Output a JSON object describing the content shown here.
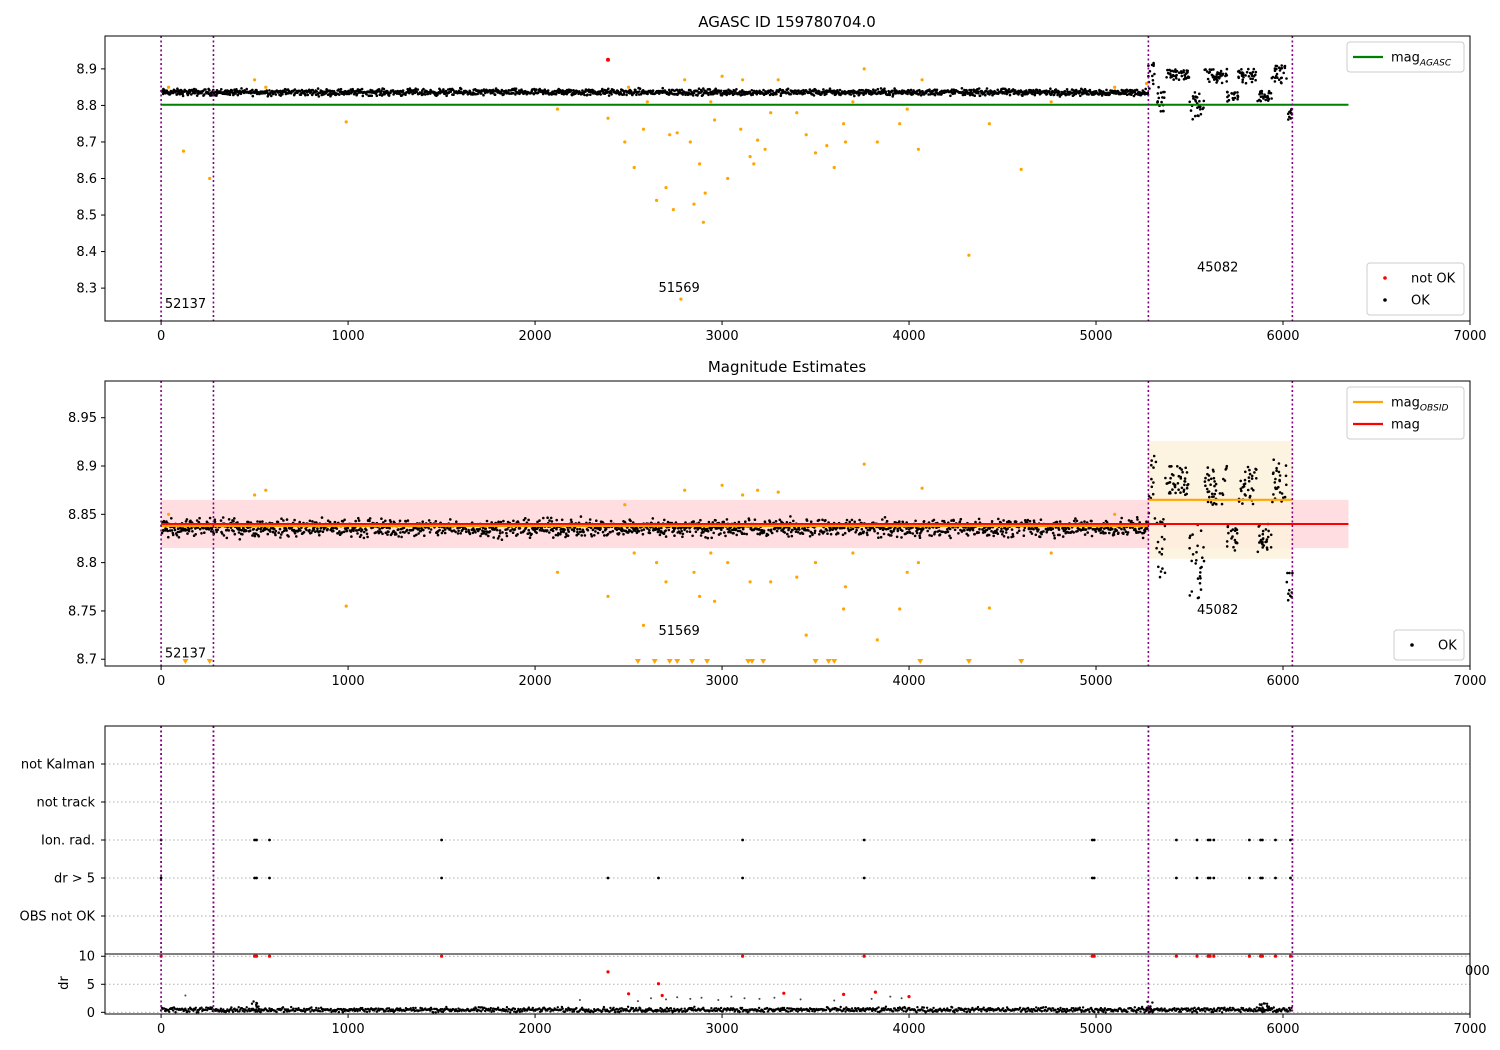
{
  "figure_title": "AGASC ID 159780704.0",
  "chart_data": [
    {
      "type": "scatter",
      "title": "AGASC ID 159780704.0",
      "xlabel": "",
      "ylabel": "",
      "xlim": [
        -300,
        7000
      ],
      "ylim": [
        8.21,
        8.99
      ],
      "x_ticks": [
        0,
        1000,
        2000,
        3000,
        4000,
        5000,
        6000,
        7000
      ],
      "y_ticks": [
        8.3,
        8.4,
        8.5,
        8.6,
        8.7,
        8.8,
        8.9
      ],
      "grid": false,
      "obsid_boundaries": [
        0,
        280,
        5280,
        6050
      ],
      "obsid_labels": [
        {
          "text": "52137",
          "x": 20,
          "y": 8.245
        },
        {
          "text": "51569",
          "x": 2660,
          "y": 8.29
        },
        {
          "text": "45082",
          "x": 5540,
          "y": 8.345
        }
      ],
      "reference_lines": [
        {
          "name": "mag_AGASC",
          "label": "mag",
          "subscript": "AGASC",
          "y": 8.802,
          "x_range": [
            0,
            6350
          ],
          "color": "#008000"
        }
      ],
      "baseline_band": {
        "x_range": [
          0,
          5280
        ],
        "center": 8.836,
        "scatter": 0.008
      },
      "segments": [
        {
          "x_range": [
            5280,
            5320
          ],
          "y_range": [
            8.84,
            8.92
          ]
        },
        {
          "x_range": [
            5320,
            5370
          ],
          "y_range": [
            8.78,
            8.85
          ]
        },
        {
          "x_range": [
            5370,
            5500
          ],
          "y_range": [
            8.87,
            8.9
          ]
        },
        {
          "x_range": [
            5500,
            5580
          ],
          "y_range": [
            8.76,
            8.84
          ]
        },
        {
          "x_range": [
            5580,
            5700
          ],
          "y_range": [
            8.86,
            8.9
          ]
        },
        {
          "x_range": [
            5700,
            5760
          ],
          "y_range": [
            8.81,
            8.84
          ]
        },
        {
          "x_range": [
            5760,
            5860
          ],
          "y_range": [
            8.86,
            8.9
          ]
        },
        {
          "x_range": [
            5860,
            5940
          ],
          "y_range": [
            8.81,
            8.84
          ]
        },
        {
          "x_range": [
            5940,
            6020
          ],
          "y_range": [
            8.86,
            8.91
          ]
        },
        {
          "x_range": [
            6020,
            6050
          ],
          "y_range": [
            8.76,
            8.79
          ]
        }
      ],
      "outliers": [
        [
          40,
          8.85
        ],
        [
          120,
          8.675
        ],
        [
          260,
          8.6
        ],
        [
          500,
          8.87
        ],
        [
          560,
          8.85
        ],
        [
          990,
          8.755
        ],
        [
          2120,
          8.79
        ],
        [
          2390,
          8.765
        ],
        [
          2480,
          8.7
        ],
        [
          2500,
          8.85
        ],
        [
          2530,
          8.63
        ],
        [
          2580,
          8.735
        ],
        [
          2600,
          8.81
        ],
        [
          2650,
          8.54
        ],
        [
          2700,
          8.575
        ],
        [
          2720,
          8.72
        ],
        [
          2740,
          8.515
        ],
        [
          2760,
          8.725
        ],
        [
          2780,
          8.27
        ],
        [
          2800,
          8.87
        ],
        [
          2830,
          8.7
        ],
        [
          2850,
          8.53
        ],
        [
          2880,
          8.64
        ],
        [
          2900,
          8.48
        ],
        [
          2910,
          8.56
        ],
        [
          2940,
          8.81
        ],
        [
          2960,
          8.76
        ],
        [
          3000,
          8.88
        ],
        [
          3030,
          8.6
        ],
        [
          3100,
          8.735
        ],
        [
          3110,
          8.87
        ],
        [
          3150,
          8.66
        ],
        [
          3170,
          8.64
        ],
        [
          3190,
          8.705
        ],
        [
          3230,
          8.68
        ],
        [
          3260,
          8.78
        ],
        [
          3300,
          8.87
        ],
        [
          3400,
          8.78
        ],
        [
          3450,
          8.72
        ],
        [
          3500,
          8.67
        ],
        [
          3560,
          8.69
        ],
        [
          3600,
          8.63
        ],
        [
          3650,
          8.75
        ],
        [
          3660,
          8.7
        ],
        [
          3700,
          8.81
        ],
        [
          3760,
          8.9
        ],
        [
          3830,
          8.7
        ],
        [
          3950,
          8.75
        ],
        [
          3990,
          8.79
        ],
        [
          4050,
          8.68
        ],
        [
          4070,
          8.87
        ],
        [
          4320,
          8.39
        ],
        [
          4430,
          8.75
        ],
        [
          4600,
          8.625
        ],
        [
          4760,
          8.81
        ],
        [
          5100,
          8.85
        ],
        [
          5270,
          8.86
        ]
      ],
      "not_ok_points": [
        [
          2390,
          8.925
        ]
      ],
      "legends": [
        {
          "position": "top-right",
          "entries": [
            {
              "label": "mag",
              "subscript": "AGASC",
              "marker": "line",
              "color": "#008000"
            }
          ]
        },
        {
          "position": "lower-right",
          "entries": [
            {
              "label": "not OK",
              "marker": "dot",
              "color": "#ff0000"
            },
            {
              "label": "OK",
              "marker": "dot",
              "color": "#000000"
            }
          ]
        }
      ],
      "colors": {
        "ok": "#000000",
        "not_ok": "#ff0000",
        "excluded": "#ffa500",
        "obsid_line": "#800080"
      }
    },
    {
      "type": "scatter",
      "title": "Magnitude Estimates",
      "xlabel": "",
      "ylabel": "",
      "xlim": [
        -300,
        7000
      ],
      "ylim": [
        8.693,
        8.988
      ],
      "x_ticks": [
        0,
        1000,
        2000,
        3000,
        4000,
        5000,
        6000,
        7000
      ],
      "y_ticks": [
        8.7,
        8.75,
        8.8,
        8.85,
        8.9,
        8.95
      ],
      "grid": false,
      "obsid_boundaries": [
        0,
        280,
        5280,
        6050
      ],
      "obsid_labels": [
        {
          "text": "52137",
          "x": 20,
          "y": 8.702
        },
        {
          "text": "51569",
          "x": 2660,
          "y": 8.725
        },
        {
          "text": "45082",
          "x": 5540,
          "y": 8.747
        }
      ],
      "mag_line": {
        "label": "mag",
        "y": 8.84,
        "x_range": [
          0,
          6350
        ],
        "band": [
          8.815,
          8.865
        ],
        "color": "#ff0000"
      },
      "obsid_mags": [
        {
          "x_range": [
            0,
            280
          ],
          "y": 8.838
        },
        {
          "x_range": [
            280,
            5280
          ],
          "y": 8.838
        },
        {
          "x_range": [
            5280,
            6050
          ],
          "y": 8.865,
          "band": [
            8.804,
            8.926
          ]
        }
      ],
      "baseline_band": {
        "x_range": [
          0,
          5280
        ],
        "center": 8.836,
        "scatter": 0.008
      },
      "segments": [
        {
          "x_range": [
            5280,
            5320
          ],
          "y_range": [
            8.84,
            8.92
          ]
        },
        {
          "x_range": [
            5320,
            5370
          ],
          "y_range": [
            8.78,
            8.85
          ]
        },
        {
          "x_range": [
            5370,
            5500
          ],
          "y_range": [
            8.87,
            8.9
          ]
        },
        {
          "x_range": [
            5500,
            5580
          ],
          "y_range": [
            8.76,
            8.84
          ]
        },
        {
          "x_range": [
            5580,
            5700
          ],
          "y_range": [
            8.86,
            8.9
          ]
        },
        {
          "x_range": [
            5700,
            5760
          ],
          "y_range": [
            8.81,
            8.84
          ]
        },
        {
          "x_range": [
            5760,
            5860
          ],
          "y_range": [
            8.86,
            8.9
          ]
        },
        {
          "x_range": [
            5860,
            5940
          ],
          "y_range": [
            8.81,
            8.84
          ]
        },
        {
          "x_range": [
            5940,
            6020
          ],
          "y_range": [
            8.86,
            8.91
          ]
        },
        {
          "x_range": [
            6020,
            6050
          ],
          "y_range": [
            8.76,
            8.79
          ]
        }
      ],
      "outliers": [
        [
          40,
          8.85
        ],
        [
          500,
          8.87
        ],
        [
          560,
          8.875
        ],
        [
          990,
          8.755
        ],
        [
          2120,
          8.79
        ],
        [
          2390,
          8.765
        ],
        [
          2480,
          8.86
        ],
        [
          2530,
          8.81
        ],
        [
          2580,
          8.735
        ],
        [
          2650,
          8.8
        ],
        [
          2700,
          8.78
        ],
        [
          2800,
          8.875
        ],
        [
          2850,
          8.79
        ],
        [
          2880,
          8.765
        ],
        [
          2940,
          8.81
        ],
        [
          2960,
          8.76
        ],
        [
          3000,
          8.88
        ],
        [
          3030,
          8.8
        ],
        [
          3110,
          8.87
        ],
        [
          3150,
          8.78
        ],
        [
          3190,
          8.875
        ],
        [
          3260,
          8.78
        ],
        [
          3300,
          8.873
        ],
        [
          3400,
          8.785
        ],
        [
          3450,
          8.725
        ],
        [
          3500,
          8.8
        ],
        [
          3650,
          8.752
        ],
        [
          3660,
          8.775
        ],
        [
          3700,
          8.81
        ],
        [
          3760,
          8.902
        ],
        [
          3830,
          8.72
        ],
        [
          3950,
          8.752
        ],
        [
          3990,
          8.79
        ],
        [
          4050,
          8.8
        ],
        [
          4070,
          8.877
        ],
        [
          4430,
          8.753
        ],
        [
          4760,
          8.81
        ],
        [
          5100,
          8.85
        ]
      ],
      "clipped_below": [
        130,
        260,
        2550,
        2640,
        2720,
        2760,
        2840,
        2920,
        3140,
        3160,
        3220,
        3500,
        3570,
        3600,
        4060,
        4320,
        4600
      ],
      "legends": [
        {
          "position": "top-right",
          "entries": [
            {
              "label": "mag",
              "subscript": "OBSID",
              "marker": "line",
              "color": "#ffa500"
            },
            {
              "label": "mag",
              "marker": "line",
              "color": "#ff0000"
            }
          ]
        },
        {
          "position": "lower-right",
          "entries": [
            {
              "label": "OK",
              "marker": "dot",
              "color": "#000000"
            }
          ]
        }
      ],
      "colors": {
        "ok": "#000000",
        "excluded": "#ffa500",
        "mag_band": "#ffdde0",
        "obsid_band": "#fdf1dc"
      }
    },
    {
      "type": "scatter",
      "title": "",
      "xlabel": "",
      "ylabel": "",
      "xlim": [
        -300,
        7000
      ],
      "categories": [
        "not Kalman",
        "not track",
        "Ion. rad.",
        "dr > 5",
        "OBS not OK"
      ],
      "grid": true,
      "obsid_boundaries": [
        0,
        280,
        5280,
        6050
      ],
      "flags": {
        "Ion. rad.": [
          0,
          500,
          510,
          580,
          1500,
          3110,
          3760,
          4980,
          4990,
          5430,
          5540,
          5600,
          5610,
          5630,
          5820,
          5880,
          5890,
          5960,
          6040
        ],
        "dr > 5": [
          0,
          500,
          510,
          580,
          1500,
          2390,
          2660,
          3110,
          3760,
          4980,
          4990,
          5430,
          5540,
          5600,
          5610,
          5630,
          5820,
          5880,
          5890,
          5960,
          6040
        ],
        "not Kalman": [],
        "not track": [],
        "OBS not OK": []
      }
    },
    {
      "type": "scatter",
      "title": "",
      "xlabel": "",
      "ylabel": "dr",
      "xlim": [
        -300,
        7000
      ],
      "ylim": [
        -0.3,
        10.4
      ],
      "x_ticks": [
        0,
        1000,
        2000,
        3000,
        4000,
        5000,
        6000,
        7000
      ],
      "y_ticks": [
        0,
        5,
        10
      ],
      "grid": true,
      "obsid_boundaries": [
        0,
        280,
        5280,
        6050
      ],
      "clipped_tick_label": "000",
      "baseline": {
        "x_range": [
          0,
          6050
        ],
        "center": 0.45,
        "scatter": 0.35
      },
      "bumps": [
        [
          510,
          2.2
        ],
        [
          5290,
          1.9
        ],
        [
          5900,
          1.6
        ]
      ],
      "gray_points": [
        [
          130,
          3.0
        ],
        [
          2240,
          2.2
        ],
        [
          2550,
          2.0
        ],
        [
          2620,
          2.5
        ],
        [
          2700,
          2.3
        ],
        [
          2760,
          2.7
        ],
        [
          2830,
          2.4
        ],
        [
          2890,
          2.6
        ],
        [
          2980,
          2.2
        ],
        [
          3050,
          2.8
        ],
        [
          3120,
          2.5
        ],
        [
          3200,
          2.4
        ],
        [
          3280,
          2.6
        ],
        [
          3330,
          3.5
        ],
        [
          3420,
          2.3
        ],
        [
          3600,
          2.1
        ],
        [
          3800,
          2.4
        ],
        [
          3900,
          2.8
        ],
        [
          3960,
          2.5
        ]
      ],
      "red_points": [
        [
          0,
          10
        ],
        [
          500,
          10
        ],
        [
          510,
          10
        ],
        [
          580,
          10
        ],
        [
          1500,
          10
        ],
        [
          2390,
          7.2
        ],
        [
          2500,
          3.3
        ],
        [
          2660,
          5.1
        ],
        [
          2680,
          3.0
        ],
        [
          3110,
          10
        ],
        [
          3330,
          3.4
        ],
        [
          3760,
          10
        ],
        [
          3650,
          3.2
        ],
        [
          3820,
          3.6
        ],
        [
          4000,
          2.8
        ],
        [
          4980,
          10
        ],
        [
          4990,
          10
        ],
        [
          5430,
          10
        ],
        [
          5540,
          10
        ],
        [
          5600,
          10
        ],
        [
          5610,
          10
        ],
        [
          5630,
          10
        ],
        [
          5820,
          10
        ],
        [
          5880,
          10
        ],
        [
          5890,
          10
        ],
        [
          5960,
          10
        ],
        [
          6040,
          10
        ]
      ],
      "colors": {
        "ok": "#000000",
        "flagged": "#ff0000",
        "gray": "#444444"
      }
    }
  ]
}
